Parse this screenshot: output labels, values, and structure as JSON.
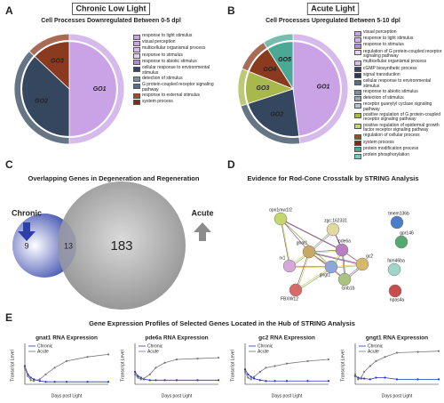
{
  "chart_data": [
    {
      "type": "pie",
      "panel": "A",
      "title": "Chronic Low Light",
      "subtitle": "Cell Processes Downregulated Between 0-5 dpl",
      "categories": [
        "GO1",
        "GO2",
        "GO3"
      ],
      "values": [
        50,
        37,
        13
      ],
      "colors": [
        "#c9a3e6",
        "#34475e",
        "#8a3a1e"
      ],
      "legend": [
        {
          "label": "response to light stimulus",
          "color": "#c9a3e6"
        },
        {
          "label": "visual perception",
          "color": "#c9a3e6"
        },
        {
          "label": "multicellular organismal process",
          "color": "#d8bdef"
        },
        {
          "label": "response to stimulus",
          "color": "#e4d2f4"
        },
        {
          "label": "response to abiotic stimulus",
          "color": "#b48ad6"
        },
        {
          "label": "cellular response to environmental stimulus",
          "color": "#34475e"
        },
        {
          "label": "detection of stimulus",
          "color": "#7d8fa3"
        },
        {
          "label": "G protein-coupled receptor signaling pathway",
          "color": "#5a6e85"
        },
        {
          "label": "response to external stimulus",
          "color": "#a04a26"
        },
        {
          "label": "system process",
          "color": "#7a2e14"
        }
      ]
    },
    {
      "type": "pie",
      "panel": "B",
      "title": "Acute Light",
      "subtitle": "Cell Processes Upregulated Between 5-10 dpl",
      "categories": [
        "GO1",
        "GO2",
        "GO3",
        "GO4",
        "GO5"
      ],
      "values": [
        48,
        22,
        11,
        10,
        9
      ],
      "colors": [
        "#c9a3e6",
        "#34475e",
        "#a9b84a",
        "#8a3a1e",
        "#4aa894"
      ],
      "legend": [
        {
          "label": "visual perception",
          "color": "#c9a3e6"
        },
        {
          "label": "response to light stimulus",
          "color": "#d3b2ec"
        },
        {
          "label": "response to stimulus",
          "color": "#b48ad6"
        },
        {
          "label": "regulation of G protein-coupled receptor signaling pathway",
          "color": "#e4d2f4"
        },
        {
          "label": "multicellular organismal process",
          "color": "#d8bdef"
        },
        {
          "label": "cGMP biosynthetic process",
          "color": "#34475e"
        },
        {
          "label": "signal transduction",
          "color": "#2b3b50"
        },
        {
          "label": "cellular response to environmental stimulus",
          "color": "#5a6e85"
        },
        {
          "label": "response to abiotic stimulus",
          "color": "#7d8fa3"
        },
        {
          "label": "detection of stimulus",
          "color": "#9aa9b9"
        },
        {
          "label": "receptor guanylyl cyclase signaling pathway",
          "color": "#b7c2cf"
        },
        {
          "label": "positive regulation of G protein-coupled receptor signaling pathway",
          "color": "#a9b84a"
        },
        {
          "label": "positive regulation of epidermal growth factor receptor signaling pathway",
          "color": "#c6d27a"
        },
        {
          "label": "regulation of cellular process",
          "color": "#a04a26"
        },
        {
          "label": "system process",
          "color": "#7a2e14"
        },
        {
          "label": "protein modification process",
          "color": "#4aa894"
        },
        {
          "label": "protein phosphorylation",
          "color": "#7fcbb9"
        }
      ]
    },
    {
      "type": "venn",
      "panel": "C",
      "title": "Overlapping Genes in Degeneration and Regeneration",
      "sets": [
        "Chronic",
        "Acute"
      ],
      "values": [
        9,
        13,
        183
      ],
      "colors": [
        "#2d3fa8",
        "#8c8c8c"
      ]
    },
    {
      "type": "network",
      "panel": "D",
      "title": "Evidence for Rod-Cone Crosstalk by STRING Analysis",
      "nodes": [
        "opn1mw1/2",
        "zgc:162331",
        "tmem136b",
        "gpr146",
        "gnat1",
        "pde6a",
        "rx1",
        "gngt1",
        "gc2",
        "Gnb1b",
        "fam46ba",
        "FBXW12",
        "npas4a"
      ]
    },
    {
      "type": "line",
      "panel": "E",
      "title": "Gene Expression Profiles of Selected Genes Located in the Hub of STRING Analysis",
      "charts": [
        {
          "title": "gnat1 RNA Expression",
          "xlabel": "Days post Light",
          "ylabel": "Transcript Level",
          "x": [
            0,
            1,
            2,
            3,
            5,
            7,
            10,
            14,
            21,
            28
          ],
          "xlim": [
            0,
            28
          ],
          "ylim": [
            0,
            4.5
          ],
          "series": [
            {
              "name": "Chronic",
              "color": "#2233cc",
              "values": [
                2.2,
                1.2,
                0.8,
                0.6,
                0.4,
                0.3,
                0.3,
                0.3,
                0.3,
                0.3
              ]
            },
            {
              "name": "Acute",
              "color": "#777777",
              "values": [
                2.0,
                1.0,
                0.5,
                0.4,
                0.6,
                1.2,
                2.0,
                2.8,
                3.3,
                3.6
              ]
            }
          ]
        },
        {
          "title": "pde6a RNA Expression",
          "xlabel": "Days post Light",
          "ylabel": "Transcript Level",
          "x": [
            0,
            1,
            2,
            3,
            5,
            7,
            10,
            14,
            21,
            28
          ],
          "xlim": [
            0,
            28
          ],
          "ylim": [
            0,
            4.5
          ],
          "series": [
            {
              "name": "Chronic",
              "color": "#2233cc",
              "values": [
                1.5,
                1.0,
                0.8,
                0.6,
                0.5,
                0.5,
                0.5,
                0.5,
                0.5,
                0.5
              ]
            },
            {
              "name": "Acute",
              "color": "#777777",
              "values": [
                1.2,
                0.8,
                0.6,
                0.7,
                1.2,
                2.0,
                2.6,
                3.0,
                3.1,
                3.2
              ]
            }
          ]
        },
        {
          "title": "gc2 RNA Expression",
          "xlabel": "Days post Light",
          "ylabel": "Transcript Level",
          "x": [
            0,
            1,
            2,
            3,
            5,
            7,
            10,
            14,
            21,
            28
          ],
          "xlim": [
            0,
            28
          ],
          "ylim": [
            0,
            4.5
          ],
          "series": [
            {
              "name": "Chronic",
              "color": "#2233cc",
              "values": [
                1.8,
                1.2,
                0.9,
                0.7,
                0.5,
                0.4,
                0.4,
                0.4,
                0.4,
                0.4
              ]
            },
            {
              "name": "Acute",
              "color": "#777777",
              "values": [
                1.5,
                0.8,
                0.6,
                0.9,
                1.5,
                2.0,
                2.2,
                2.5,
                2.8,
                3.0
              ]
            }
          ]
        },
        {
          "title": "gngt1 RNA Expression",
          "xlabel": "Days post Light",
          "ylabel": "Transcript Level",
          "x": [
            0,
            1,
            2,
            3,
            5,
            7,
            10,
            14,
            21,
            28
          ],
          "xlim": [
            0,
            28
          ],
          "ylim": [
            0,
            4.5
          ],
          "series": [
            {
              "name": "Chronic",
              "color": "#2233cc",
              "values": [
                1.0,
                0.8,
                0.7,
                0.7,
                0.6,
                0.8,
                0.8,
                0.6,
                0.6,
                0.6
              ]
            },
            {
              "name": "Acute",
              "color": "#777777",
              "values": [
                1.2,
                0.6,
                0.8,
                1.5,
                2.2,
                2.8,
                3.3,
                3.8,
                3.9,
                4.0
              ]
            }
          ]
        }
      ]
    }
  ]
}
